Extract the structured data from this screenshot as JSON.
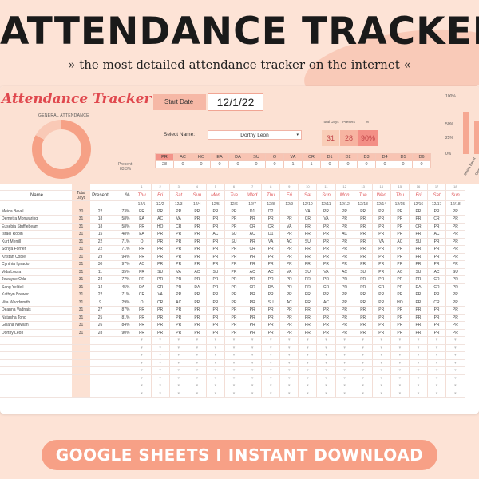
{
  "hero": {
    "title": "ATTENDANCE TRACKER",
    "subtitle": "» the most detailed attendance tracker on the internet «"
  },
  "dashboard": {
    "sheet_title": "Attendance Tracker",
    "general_attendance_label": "GENERAL ATTENDANCE",
    "present_label": "Present",
    "present_pct": "83.3%",
    "start_date_label": "Start Date",
    "start_date_value": "12/1/22",
    "select_name_label": "Select Name:",
    "selected_name": "Dorthy Leon",
    "stats": {
      "total_days_label": "Total Days",
      "present_label": "Present",
      "pct_label": "%",
      "total_days": "31",
      "present": "28",
      "pct": "90%"
    },
    "codes": [
      "PR",
      "AC",
      "HO",
      "EA",
      "DA",
      "SU",
      "O",
      "VA",
      "CR",
      "D1",
      "D2",
      "D3",
      "D4",
      "D5",
      "D6"
    ],
    "code_counts": [
      "28",
      "0",
      "0",
      "0",
      "0",
      "0",
      "0",
      "1",
      "1",
      "0",
      "0",
      "0",
      "0",
      "0",
      "0"
    ],
    "selected_code": "PR",
    "mini_chart_ticks": [
      "100%",
      "50%",
      "25%",
      "0%"
    ],
    "mini_chart_labels": [
      "Meida Bevel",
      "Demetra Monwaring"
    ],
    "mini_chart_values": [
      0.73,
      0.58
    ]
  },
  "colors": {
    "accent": "#e0484e",
    "peach": "#f7a086",
    "pale": "#fce1d3"
  },
  "grid": {
    "headers": {
      "name": "Name",
      "total": "Total Days",
      "present": "Present",
      "pct": "%"
    },
    "day_numbers": [
      "1",
      "2",
      "3",
      "4",
      "5",
      "6",
      "7",
      "8",
      "9",
      "10",
      "11",
      "12",
      "13",
      "14",
      "15",
      "16",
      "17",
      "18"
    ],
    "weekdays": [
      "Thu",
      "Fri",
      "Sat",
      "Sun",
      "Mon",
      "Tue",
      "Wed",
      "Thu",
      "Fri",
      "Sat",
      "Sun",
      "Mon",
      "Tue",
      "Wed",
      "Thu",
      "Fri",
      "Sat",
      "Sun"
    ],
    "dates": [
      "12/1",
      "12/2",
      "12/3",
      "12/4",
      "12/5",
      "12/6",
      "12/7",
      "12/8",
      "12/9",
      "12/10",
      "12/11",
      "12/12",
      "12/13",
      "12/14",
      "12/15",
      "12/16",
      "12/17",
      "12/18"
    ],
    "rows": [
      {
        "name": "Meida Bevel",
        "total": "30",
        "present": "22",
        "pct": "73%",
        "marks": [
          "PR",
          "PR",
          "PR",
          "PR",
          "PR",
          "PR",
          "D1",
          "D2",
          "",
          "VA",
          "PR",
          "PR",
          "PR",
          "PR",
          "PR",
          "PR",
          "PR",
          "PR"
        ]
      },
      {
        "name": "Demetra Monwaring",
        "total": "31",
        "present": "18",
        "pct": "58%",
        "marks": [
          "EA",
          "AC",
          "VA",
          "PR",
          "PR",
          "PR",
          "PR",
          "PR",
          "PR",
          "CR",
          "VA",
          "PR",
          "PR",
          "PR",
          "PR",
          "PR",
          "CR",
          "PR"
        ]
      },
      {
        "name": "Eusebia Stufflebeam",
        "total": "31",
        "present": "18",
        "pct": "58%",
        "marks": [
          "PR",
          "HO",
          "CR",
          "PR",
          "PR",
          "PR",
          "CR",
          "CR",
          "VA",
          "PR",
          "PR",
          "PR",
          "PR",
          "PR",
          "PR",
          "CR",
          "PR",
          "PR"
        ]
      },
      {
        "name": "Israel Robin",
        "total": "31",
        "present": "15",
        "pct": "48%",
        "marks": [
          "EA",
          "PR",
          "PR",
          "PR",
          "AC",
          "SU",
          "AC",
          "D1",
          "PR",
          "PR",
          "PR",
          "AC",
          "PR",
          "PR",
          "PR",
          "PR",
          "AC",
          "PR"
        ]
      },
      {
        "name": "Kurt Merrill",
        "total": "31",
        "present": "22",
        "pct": "71%",
        "marks": [
          "O",
          "PR",
          "PR",
          "PR",
          "PR",
          "SU",
          "PR",
          "VA",
          "AC",
          "SU",
          "PR",
          "PR",
          "PR",
          "VA",
          "AC",
          "SU",
          "PR",
          "PR"
        ]
      },
      {
        "name": "Sonya Forner",
        "total": "31",
        "present": "22",
        "pct": "71%",
        "marks": [
          "PR",
          "PR",
          "PR",
          "PR",
          "PR",
          "PR",
          "CR",
          "PR",
          "PR",
          "PR",
          "PR",
          "PR",
          "PR",
          "PR",
          "PR",
          "PR",
          "PR",
          "PR"
        ]
      },
      {
        "name": "Kristan Coble",
        "total": "31",
        "present": "29",
        "pct": "94%",
        "marks": [
          "PR",
          "PR",
          "PR",
          "PR",
          "PR",
          "PR",
          "PR",
          "PR",
          "PR",
          "PR",
          "PR",
          "PR",
          "PR",
          "PR",
          "PR",
          "PR",
          "PR",
          "PR"
        ]
      },
      {
        "name": "Cynthia Ignacio",
        "total": "31",
        "present": "30",
        "pct": "97%",
        "marks": [
          "AC",
          "PR",
          "PR",
          "PR",
          "PR",
          "PR",
          "PR",
          "PR",
          "PR",
          "PR",
          "PR",
          "PR",
          "PR",
          "PR",
          "PR",
          "PR",
          "PR",
          "PR"
        ]
      },
      {
        "name": "Vida Loura",
        "total": "31",
        "present": "11",
        "pct": "35%",
        "marks": [
          "PR",
          "SU",
          "VA",
          "AC",
          "SU",
          "PR",
          "AC",
          "AC",
          "VA",
          "SU",
          "VA",
          "AC",
          "SU",
          "PR",
          "AC",
          "SU",
          "AC",
          "SU"
        ]
      },
      {
        "name": "Jewayne Oda",
        "total": "31",
        "present": "24",
        "pct": "77%",
        "marks": [
          "PR",
          "PR",
          "PR",
          "PR",
          "PR",
          "PR",
          "PR",
          "PR",
          "PR",
          "PR",
          "PR",
          "PR",
          "PR",
          "PR",
          "PR",
          "PR",
          "CR",
          "PR"
        ]
      },
      {
        "name": "Sang Yeldell",
        "total": "31",
        "present": "14",
        "pct": "45%",
        "marks": [
          "DA",
          "CR",
          "PR",
          "DA",
          "PR",
          "PR",
          "CR",
          "DA",
          "PR",
          "PR",
          "CR",
          "PR",
          "PR",
          "CR",
          "PR",
          "DA",
          "CR",
          "PR"
        ]
      },
      {
        "name": "Kathlyn Brewer",
        "total": "31",
        "present": "22",
        "pct": "71%",
        "marks": [
          "CR",
          "VA",
          "PR",
          "PR",
          "PR",
          "PR",
          "PR",
          "PR",
          "PR",
          "PR",
          "PR",
          "PR",
          "PR",
          "PR",
          "PR",
          "PR",
          "PR",
          "PR"
        ]
      },
      {
        "name": "Vita Woodworth",
        "total": "31",
        "present": "9",
        "pct": "29%",
        "marks": [
          "O",
          "CR",
          "AC",
          "PR",
          "PR",
          "PR",
          "PR",
          "SU",
          "AC",
          "PR",
          "AC",
          "PR",
          "PR",
          "PR",
          "HO",
          "PR",
          "CR",
          "PR"
        ]
      },
      {
        "name": "Deanna Vadnais",
        "total": "31",
        "present": "27",
        "pct": "87%",
        "marks": [
          "PR",
          "PR",
          "PR",
          "PR",
          "PR",
          "PR",
          "PR",
          "PR",
          "PR",
          "PR",
          "PR",
          "PR",
          "PR",
          "PR",
          "PR",
          "PR",
          "PR",
          "PR"
        ]
      },
      {
        "name": "Natasha Tong",
        "total": "31",
        "present": "25",
        "pct": "81%",
        "marks": [
          "PR",
          "PR",
          "PR",
          "PR",
          "PR",
          "PR",
          "PR",
          "PR",
          "PR",
          "PR",
          "PR",
          "PR",
          "PR",
          "PR",
          "PR",
          "PR",
          "PR",
          "PR"
        ]
      },
      {
        "name": "Gillana Newlan",
        "total": "31",
        "present": "26",
        "pct": "84%",
        "marks": [
          "PR",
          "PR",
          "PR",
          "PR",
          "PR",
          "PR",
          "PR",
          "PR",
          "PR",
          "PR",
          "PR",
          "PR",
          "PR",
          "PR",
          "PR",
          "PR",
          "PR",
          "PR"
        ]
      },
      {
        "name": "Dorthy Leon",
        "total": "31",
        "present": "28",
        "pct": "90%",
        "marks": [
          "PR",
          "PR",
          "PR",
          "PR",
          "PR",
          "PR",
          "PR",
          "PR",
          "PR",
          "PR",
          "PR",
          "PR",
          "PR",
          "PR",
          "PR",
          "PR",
          "PR",
          "PR"
        ]
      }
    ],
    "empty_rows": 8
  },
  "banner": {
    "text": "GOOGLE SHEETS  I  INSTANT DOWNLOAD"
  }
}
